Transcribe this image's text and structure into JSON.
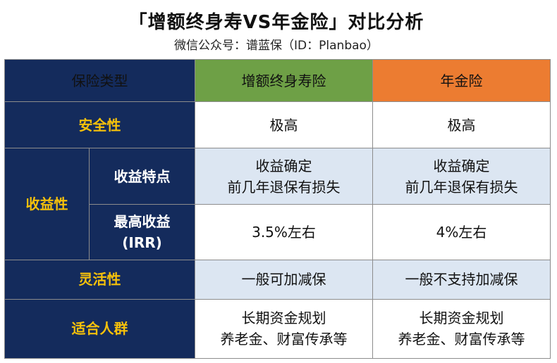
{
  "header": {
    "title": "「增额终身寿VS年金险」对比分析",
    "subtitle": "微信公众号：谱蓝保（ID：Planbao）"
  },
  "table": {
    "corner_label": "保险类型",
    "col1": "增额终身寿险",
    "col2": "年金险",
    "rows": {
      "safety": {
        "label": "安全性",
        "col1": "极高",
        "col2": "极高"
      },
      "income": {
        "label": "收益性",
        "feature": {
          "label": "收益特点",
          "col1_line1": "收益确定",
          "col1_line2": "前几年退保有损失",
          "col2_line1": "收益确定",
          "col2_line2": "前几年退保有损失"
        },
        "max": {
          "label_line1": "最高收益",
          "label_line2": "(IRR)",
          "col1": "3.5%左右",
          "col2": "4%左右"
        }
      },
      "flexibility": {
        "label": "灵活性",
        "col1": "一般可加减保",
        "col2": "一般不支持加减保"
      },
      "audience": {
        "label": "适合人群",
        "col1_line1": "长期资金规划",
        "col1_line2": "养老金、财富传承等",
        "col2_line1": "长期资金规划",
        "col2_line2": "养老金、财富传承等"
      }
    }
  },
  "colors": {
    "navy": "#142b5c",
    "gold": "#f6c10b",
    "green": "#6ea046",
    "orange": "#ec7c31",
    "light_blue": "#dce6f2",
    "red": "#e8261a"
  }
}
